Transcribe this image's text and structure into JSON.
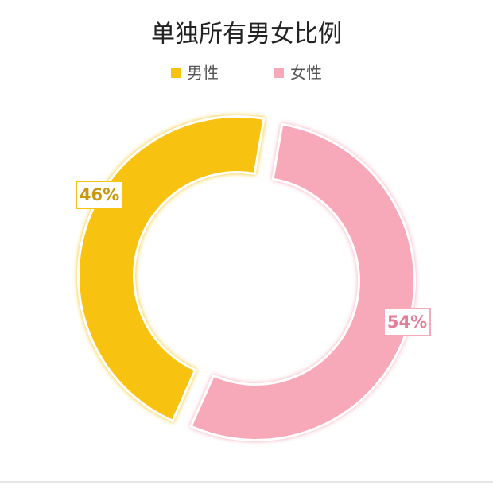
{
  "chart_data": {
    "type": "donut",
    "title": "单独所有男女比例",
    "categories": [
      "男性",
      "女性"
    ],
    "values": [
      46,
      54
    ],
    "value_labels": [
      "46%",
      "54%"
    ],
    "colors": [
      "#F8C210",
      "#F7A9B9"
    ],
    "label_colors": [
      "#C9980C",
      "#E27C97"
    ],
    "legend": "top"
  }
}
